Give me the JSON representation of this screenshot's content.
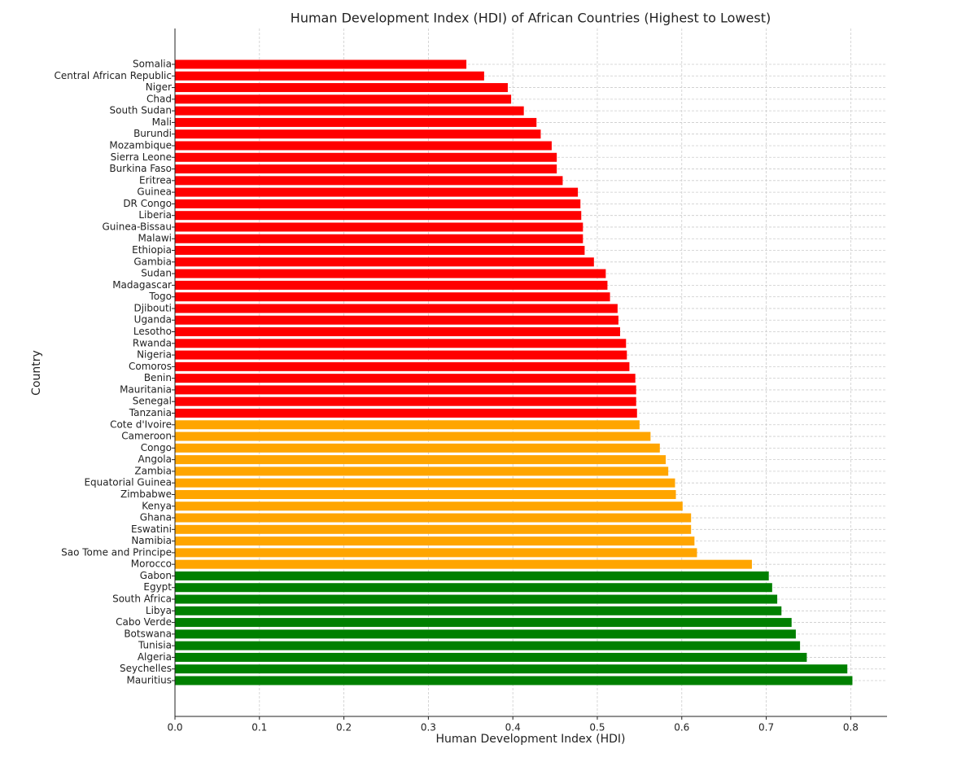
{
  "chart_data": {
    "type": "barh",
    "title": "Human Development Index (HDI) of African Countries (Highest to Lowest)",
    "x_label": "Human Development Index (HDI)",
    "y_label": "Country",
    "categories": [
      "Somalia",
      "Central African Republic",
      "Niger",
      "Chad",
      "South Sudan",
      "Mali",
      "Burundi",
      "Mozambique",
      "Sierra Leone",
      "Burkina Faso",
      "Eritrea",
      "Guinea",
      "DR Congo",
      "Liberia",
      "Guinea-Bissau",
      "Malawi",
      "Ethiopia",
      "Gambia",
      "Sudan",
      "Madagascar",
      "Togo",
      "Djibouti",
      "Uganda",
      "Lesotho",
      "Rwanda",
      "Nigeria",
      "Comoros",
      "Benin",
      "Mauritania",
      "Senegal",
      "Tanzania",
      "Cote d'Ivoire",
      "Cameroon",
      "Congo",
      "Angola",
      "Zambia",
      "Equatorial Guinea",
      "Zimbabwe",
      "Kenya",
      "Ghana",
      "Eswatini",
      "Namibia",
      "Sao Tome and Principe",
      "Morocco",
      "Gabon",
      "Egypt",
      "South Africa",
      "Libya",
      "Cabo Verde",
      "Botswana",
      "Tunisia",
      "Algeria",
      "Seychelles",
      "Mauritius"
    ],
    "values": [
      0.345,
      0.366,
      0.394,
      0.398,
      0.413,
      0.428,
      0.433,
      0.446,
      0.452,
      0.452,
      0.459,
      0.477,
      0.48,
      0.481,
      0.483,
      0.483,
      0.485,
      0.496,
      0.51,
      0.512,
      0.515,
      0.524,
      0.525,
      0.527,
      0.534,
      0.535,
      0.538,
      0.545,
      0.546,
      0.546,
      0.547,
      0.55,
      0.563,
      0.574,
      0.581,
      0.584,
      0.592,
      0.593,
      0.601,
      0.611,
      0.611,
      0.615,
      0.618,
      0.683,
      0.703,
      0.707,
      0.713,
      0.718,
      0.73,
      0.735,
      0.74,
      0.748,
      0.796,
      0.802
    ],
    "colors": [
      "red",
      "red",
      "red",
      "red",
      "red",
      "red",
      "red",
      "red",
      "red",
      "red",
      "red",
      "red",
      "red",
      "red",
      "red",
      "red",
      "red",
      "red",
      "red",
      "red",
      "red",
      "red",
      "red",
      "red",
      "red",
      "red",
      "red",
      "red",
      "red",
      "red",
      "red",
      "orange",
      "orange",
      "orange",
      "orange",
      "orange",
      "orange",
      "orange",
      "orange",
      "orange",
      "orange",
      "orange",
      "orange",
      "orange",
      "green",
      "green",
      "green",
      "green",
      "green",
      "green",
      "green",
      "green",
      "green",
      "green"
    ],
    "xlim": [
      0,
      0.843
    ],
    "xticks": [
      {
        "value": 0,
        "label": "0.0"
      },
      0.1,
      0.2,
      0.3,
      0.4,
      0.5,
      0.6,
      0.7,
      0.8
    ],
    "grid": true
  }
}
